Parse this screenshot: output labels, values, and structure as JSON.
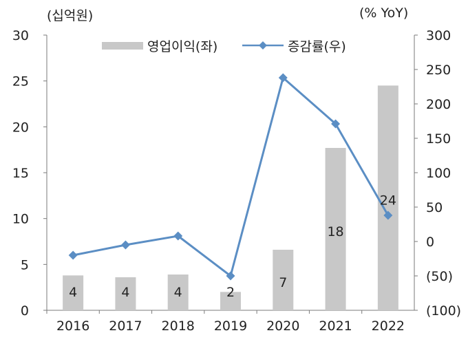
{
  "chart_data": {
    "type": "bar+line",
    "left_axis_unit": "(십억원)",
    "right_axis_unit": "(% YoY)",
    "categories": [
      "2016",
      "2017",
      "2018",
      "2019",
      "2020",
      "2021",
      "2022"
    ],
    "series": [
      {
        "name": "영업이익(좌)",
        "type": "bar",
        "axis": "left",
        "color": "#c8c8c8",
        "values": [
          3.8,
          3.6,
          3.9,
          2.0,
          6.6,
          17.7,
          24.5
        ],
        "data_labels": [
          "4",
          "4",
          "4",
          "2",
          "7",
          "18",
          "24"
        ]
      },
      {
        "name": "증감률(우)",
        "type": "line",
        "axis": "right",
        "color": "#5b8ec4",
        "marker": "diamond",
        "values": [
          -20,
          -5,
          8,
          -50,
          238,
          171,
          38
        ]
      }
    ],
    "left_axis": {
      "min": 0,
      "max": 30,
      "step": 5,
      "tick_labels": [
        "0",
        "5",
        "10",
        "15",
        "20",
        "25",
        "30"
      ]
    },
    "right_axis": {
      "min": -100,
      "max": 300,
      "step": 50,
      "tick_labels": [
        "(100)",
        "(50)",
        "0",
        "50",
        "100",
        "150",
        "200",
        "250",
        "300"
      ]
    },
    "legend_position": "top",
    "grid": false
  }
}
